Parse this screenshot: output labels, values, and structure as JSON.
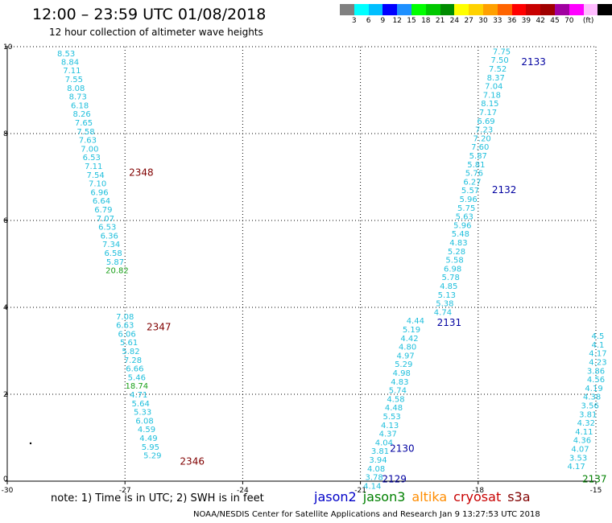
{
  "header": {
    "title": "12:00 – 23:59 UTC 01/08/2018",
    "subtitle": "12 hour collection of altimeter wave heights"
  },
  "colorbar": {
    "colors": [
      "#808080",
      "#00ffff",
      "#00bfff",
      "#0000ff",
      "#1e90ff",
      "#00ff00",
      "#00c800",
      "#008c00",
      "#ffff00",
      "#ffd200",
      "#ffa000",
      "#ff6400",
      "#ff0000",
      "#c80000",
      "#a00000",
      "#a000a0",
      "#ff00ff",
      "#ffbcff",
      "#000000"
    ],
    "labels": [
      "3",
      "6",
      "9",
      "12",
      "15",
      "18",
      "21",
      "24",
      "27",
      "30",
      "33",
      "36",
      "39",
      "42",
      "45",
      "70",
      "(ft)"
    ]
  },
  "axes": {
    "x_ticks": [
      "-30",
      "-27",
      "-24",
      "-21",
      "-18",
      "-15"
    ],
    "y_ticks": [
      "0",
      "2",
      "4",
      "6",
      "8",
      "10"
    ]
  },
  "chart_data": {
    "type": "scatter",
    "xlabel": "",
    "ylabel": "",
    "xlim": [
      -30,
      -15
    ],
    "ylim": [
      0,
      10
    ],
    "grid": true,
    "tracks": [
      {
        "pass": "2348",
        "color": "#800000",
        "label_at": [
          -26.9,
          7.1
        ],
        "points": [
          {
            "x": -28.5,
            "y": 9.85,
            "v": "8.53"
          },
          {
            "x": -28.4,
            "y": 9.66,
            "v": "8.84"
          },
          {
            "x": -28.35,
            "y": 9.46,
            "v": "7.11"
          },
          {
            "x": -28.3,
            "y": 9.26,
            "v": "7.55"
          },
          {
            "x": -28.25,
            "y": 9.06,
            "v": "8.08"
          },
          {
            "x": -28.2,
            "y": 8.86,
            "v": "8.73"
          },
          {
            "x": -28.15,
            "y": 8.66,
            "v": "6.18"
          },
          {
            "x": -28.1,
            "y": 8.46,
            "v": "8.26"
          },
          {
            "x": -28.05,
            "y": 8.26,
            "v": "7.65"
          },
          {
            "x": -28.0,
            "y": 8.06,
            "v": "7.58"
          },
          {
            "x": -27.95,
            "y": 7.86,
            "v": "7.63"
          },
          {
            "x": -27.9,
            "y": 7.66,
            "v": "7.00"
          },
          {
            "x": -27.85,
            "y": 7.46,
            "v": "6.53"
          },
          {
            "x": -27.8,
            "y": 7.26,
            "v": "7.11"
          },
          {
            "x": -27.75,
            "y": 7.06,
            "v": "7.54"
          },
          {
            "x": -27.7,
            "y": 6.86,
            "v": "7.10"
          },
          {
            "x": -27.65,
            "y": 6.66,
            "v": "6.96"
          },
          {
            "x": -27.6,
            "y": 6.46,
            "v": "6.64"
          },
          {
            "x": -27.55,
            "y": 6.26,
            "v": "6.79"
          },
          {
            "x": -27.5,
            "y": 6.06,
            "v": "7.07"
          },
          {
            "x": -27.45,
            "y": 5.86,
            "v": "6.53"
          },
          {
            "x": -27.4,
            "y": 5.66,
            "v": "6.36"
          },
          {
            "x": -27.35,
            "y": 5.46,
            "v": "7.34"
          },
          {
            "x": -27.3,
            "y": 5.26,
            "v": "6.58"
          },
          {
            "x": -27.25,
            "y": 5.06,
            "v": "5.87"
          },
          {
            "x": -27.2,
            "y": 4.86,
            "v": "20.82",
            "green": true
          }
        ]
      },
      {
        "pass": "2347",
        "color": "#800000",
        "label_at": [
          -26.45,
          3.55
        ],
        "points": [
          {
            "x": -27.0,
            "y": 3.8,
            "v": "7.08"
          },
          {
            "x": -27.0,
            "y": 3.6,
            "v": "6.63"
          },
          {
            "x": -26.95,
            "y": 3.4,
            "v": "6.06"
          },
          {
            "x": -26.9,
            "y": 3.2,
            "v": "5.61"
          },
          {
            "x": -26.85,
            "y": 3.0,
            "v": "5.82"
          },
          {
            "x": -26.8,
            "y": 2.8,
            "v": "7.28"
          },
          {
            "x": -26.75,
            "y": 2.6,
            "v": "6.66"
          },
          {
            "x": -26.7,
            "y": 2.4,
            "v": "5.46"
          },
          {
            "x": -26.7,
            "y": 2.2,
            "v": "18.74",
            "green": true
          },
          {
            "x": -26.65,
            "y": 2.0,
            "v": "4.71"
          },
          {
            "x": -26.6,
            "y": 1.8,
            "v": "5.64"
          },
          {
            "x": -26.55,
            "y": 1.6,
            "v": "5.33"
          },
          {
            "x": -26.5,
            "y": 1.4,
            "v": "6.08"
          },
          {
            "x": -26.45,
            "y": 1.2,
            "v": "4.59"
          },
          {
            "x": -26.4,
            "y": 1.0,
            "v": "4.49"
          },
          {
            "x": -26.35,
            "y": 0.8,
            "v": "5.95"
          },
          {
            "x": -26.3,
            "y": 0.6,
            "v": "5.29"
          }
        ]
      },
      {
        "pass": "2346",
        "color": "#800000",
        "label_at": [
          -25.6,
          0.45
        ],
        "points": []
      },
      {
        "pass": "2133",
        "color": "#0000a0",
        "label_at": [
          -16.9,
          9.65
        ],
        "points": [
          {
            "x": -17.4,
            "y": 9.9,
            "v": "7.75"
          },
          {
            "x": -17.45,
            "y": 9.7,
            "v": "7.50"
          },
          {
            "x": -17.5,
            "y": 9.5,
            "v": "7.52"
          },
          {
            "x": -17.55,
            "y": 9.3,
            "v": "8.37"
          },
          {
            "x": -17.6,
            "y": 9.1,
            "v": "7.04"
          },
          {
            "x": -17.65,
            "y": 8.9,
            "v": "7.18"
          },
          {
            "x": -17.7,
            "y": 8.7,
            "v": "8.15"
          },
          {
            "x": -17.75,
            "y": 8.5,
            "v": "7.17"
          },
          {
            "x": -17.8,
            "y": 8.3,
            "v": "6.69"
          },
          {
            "x": -17.85,
            "y": 8.1,
            "v": "7.23"
          },
          {
            "x": -17.9,
            "y": 7.9,
            "v": "7.20"
          },
          {
            "x": -17.95,
            "y": 7.7,
            "v": "7.60"
          },
          {
            "x": -18.0,
            "y": 7.5,
            "v": "5.87"
          },
          {
            "x": -18.05,
            "y": 7.3,
            "v": "5.81"
          },
          {
            "x": -18.1,
            "y": 7.1,
            "v": "5.76"
          }
        ]
      },
      {
        "pass": "2132",
        "color": "#0000a0",
        "label_at": [
          -17.65,
          6.7
        ],
        "points": [
          {
            "x": -18.15,
            "y": 6.9,
            "v": "6.27"
          },
          {
            "x": -18.2,
            "y": 6.7,
            "v": "5.57"
          },
          {
            "x": -18.25,
            "y": 6.5,
            "v": "5.96"
          },
          {
            "x": -18.3,
            "y": 6.3,
            "v": "5.75"
          },
          {
            "x": -18.35,
            "y": 6.1,
            "v": "5.63"
          },
          {
            "x": -18.4,
            "y": 5.9,
            "v": "5.96"
          },
          {
            "x": -18.45,
            "y": 5.7,
            "v": "5.48"
          },
          {
            "x": -18.5,
            "y": 5.5,
            "v": "4.83"
          },
          {
            "x": -18.55,
            "y": 5.3,
            "v": "5.28"
          },
          {
            "x": -18.6,
            "y": 5.1,
            "v": "5.58"
          },
          {
            "x": -18.65,
            "y": 4.9,
            "v": "6.98"
          },
          {
            "x": -18.7,
            "y": 4.7,
            "v": "5.78"
          },
          {
            "x": -18.75,
            "y": 4.5,
            "v": "4.85"
          },
          {
            "x": -18.8,
            "y": 4.3,
            "v": "5.13"
          },
          {
            "x": -18.85,
            "y": 4.1,
            "v": "5.38"
          },
          {
            "x": -18.9,
            "y": 3.9,
            "v": "4.74"
          }
        ]
      },
      {
        "pass": "2131",
        "color": "#0000a0",
        "label_at": [
          -19.05,
          3.65
        ],
        "points": [
          {
            "x": -19.6,
            "y": 3.7,
            "v": "4.44"
          },
          {
            "x": -19.7,
            "y": 3.5,
            "v": "5.19"
          },
          {
            "x": -19.75,
            "y": 3.3,
            "v": "4.42"
          },
          {
            "x": -19.8,
            "y": 3.1,
            "v": "4.80"
          },
          {
            "x": -19.85,
            "y": 2.9,
            "v": "4.97"
          },
          {
            "x": -19.9,
            "y": 2.7,
            "v": "5.29"
          },
          {
            "x": -19.95,
            "y": 2.5,
            "v": "4.98"
          },
          {
            "x": -20.0,
            "y": 2.3,
            "v": "4.83"
          },
          {
            "x": -20.05,
            "y": 2.1,
            "v": "5.74"
          },
          {
            "x": -20.1,
            "y": 1.9,
            "v": "4.58"
          },
          {
            "x": -20.15,
            "y": 1.7,
            "v": "4.48"
          },
          {
            "x": -20.2,
            "y": 1.5,
            "v": "5.53"
          },
          {
            "x": -20.25,
            "y": 1.3,
            "v": "4.13"
          },
          {
            "x": -20.3,
            "y": 1.1,
            "v": "4.37"
          }
        ]
      },
      {
        "pass": "2130",
        "color": "#0000a0",
        "label_at": [
          -20.25,
          0.75
        ],
        "points": [
          {
            "x": -20.4,
            "y": 0.9,
            "v": "4.04"
          },
          {
            "x": -20.5,
            "y": 0.7,
            "v": "3.81"
          },
          {
            "x": -20.55,
            "y": 0.5,
            "v": "3.94"
          },
          {
            "x": -20.6,
            "y": 0.3,
            "v": "4.08"
          },
          {
            "x": -20.65,
            "y": 0.1,
            "v": "3.78"
          },
          {
            "x": -20.7,
            "y": -0.1,
            "v": "4.14"
          }
        ]
      },
      {
        "pass": "2129",
        "color": "#0000a0",
        "label_at": [
          -20.45,
          0.05
        ],
        "points": []
      },
      {
        "pass": "2137",
        "color": "#008000",
        "label_at": [
          -15.35,
          0.05
        ],
        "points": [
          {
            "x": -14.95,
            "y": 3.35,
            "v": "4.5"
          },
          {
            "x": -14.95,
            "y": 3.15,
            "v": "4.1"
          },
          {
            "x": -14.95,
            "y": 2.95,
            "v": "4.17"
          },
          {
            "x": -14.95,
            "y": 2.75,
            "v": "4.23"
          },
          {
            "x": -15.0,
            "y": 2.55,
            "v": "3.86"
          },
          {
            "x": -15.0,
            "y": 2.35,
            "v": "4.56"
          },
          {
            "x": -15.05,
            "y": 2.15,
            "v": "4.19"
          },
          {
            "x": -15.1,
            "y": 1.95,
            "v": "4.38"
          },
          {
            "x": -15.15,
            "y": 1.75,
            "v": "3.56"
          },
          {
            "x": -15.2,
            "y": 1.55,
            "v": "3.81"
          },
          {
            "x": -15.25,
            "y": 1.35,
            "v": "4.32"
          },
          {
            "x": -15.3,
            "y": 1.15,
            "v": "4.11"
          },
          {
            "x": -15.35,
            "y": 0.95,
            "v": "4.36"
          },
          {
            "x": -15.4,
            "y": 0.75,
            "v": "4.07"
          },
          {
            "x": -15.45,
            "y": 0.55,
            "v": "3.53"
          },
          {
            "x": -15.5,
            "y": 0.35,
            "v": "4.17"
          }
        ]
      }
    ]
  },
  "note": "note: 1) Time is in UTC; 2) SWH is in feet",
  "legend": [
    {
      "name": "jason2",
      "color": "#0000c8"
    },
    {
      "name": "jason3",
      "color": "#008000"
    },
    {
      "name": "altika",
      "color": "#ff8c00"
    },
    {
      "name": "cryosat",
      "color": "#c80000"
    },
    {
      "name": "s3a",
      "color": "#800000"
    }
  ],
  "footer": "NOAA/NESDIS Center for Satellite Applications and Research    Jan  9 13:27:53 UTC 2018"
}
